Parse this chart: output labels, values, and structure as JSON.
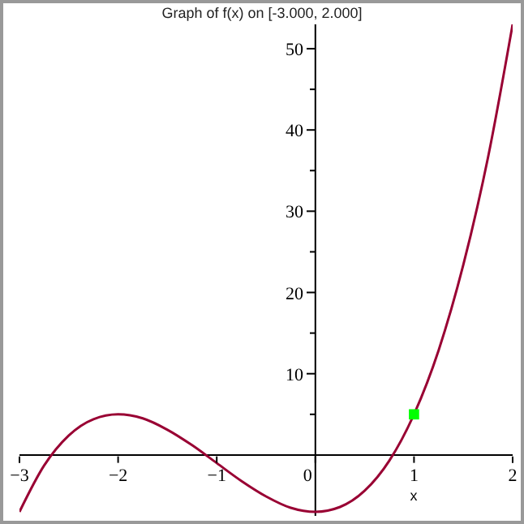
{
  "chart_data": {
    "type": "line",
    "title": "Graph of f(x) on [-3.000, 2.000]",
    "xlabel": "x",
    "xlim": [
      -3,
      2
    ],
    "xticks": [
      {
        "value": -3,
        "label": "−3"
      },
      {
        "value": -2,
        "label": "−2"
      },
      {
        "value": -1,
        "label": "−1"
      },
      0,
      1,
      2
    ],
    "ylim": [
      -7.5,
      53
    ],
    "yticks": [
      {
        "value": 5,
        "label": null
      },
      10,
      {
        "value": 15,
        "label": null
      },
      20,
      {
        "value": 25,
        "label": null
      },
      30,
      {
        "value": 35,
        "label": null
      },
      40,
      {
        "value": 45,
        "label": null
      },
      50
    ],
    "line_style": "solid",
    "series": [
      {
        "type": "line",
        "color": "#990033",
        "marker": "none",
        "x": [
          -3,
          -2.75,
          -2.5,
          -2.25,
          -2,
          -1.75,
          -1.5,
          -1.25,
          -1,
          -0.75,
          -0.5,
          -0.25,
          0,
          0.25,
          0.5,
          0.75,
          1,
          1.25,
          1.5,
          1.75,
          2
        ],
        "values": [
          -7,
          -1.3,
          2.4,
          4.4,
          5,
          4.5,
          3.1,
          1.2,
          -1,
          -3.2,
          -5.1,
          -6.5,
          -7,
          -6.4,
          -4.4,
          -0.7,
          5,
          12.9,
          23.4,
          36.6,
          53
        ]
      },
      {
        "type": "scatter",
        "color": "#00ff00",
        "marker": "square",
        "x": [
          1
        ],
        "values": [
          5
        ]
      }
    ]
  }
}
